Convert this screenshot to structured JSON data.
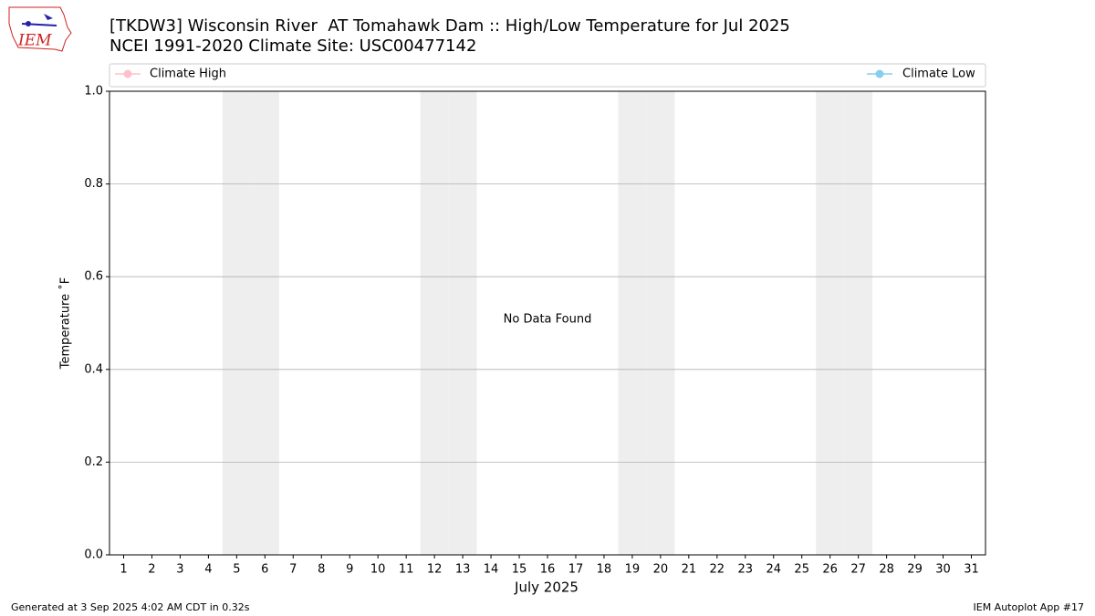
{
  "chart_data": {
    "type": "line",
    "title": "[TKDW3] Wisconsin River  AT Tomahawk Dam :: High/Low Temperature for Jul 2025",
    "subtitle": "NCEI 1991-2020 Climate Site: USC00477142",
    "x_label": "July 2025",
    "y_label": "Temperature ˚F",
    "annotation": "No Data Found",
    "categories": [
      "1",
      "2",
      "3",
      "4",
      "5",
      "6",
      "7",
      "8",
      "9",
      "10",
      "11",
      "12",
      "13",
      "14",
      "15",
      "16",
      "17",
      "18",
      "19",
      "20",
      "21",
      "22",
      "23",
      "24",
      "25",
      "26",
      "27",
      "28",
      "29",
      "30",
      "31"
    ],
    "series": [
      {
        "name": "Climate High",
        "color": "pink",
        "values": [
          null,
          null,
          null,
          null,
          null,
          null,
          null,
          null,
          null,
          null,
          null,
          null,
          null,
          null,
          null,
          null,
          null,
          null,
          null,
          null,
          null,
          null,
          null,
          null,
          null,
          null,
          null,
          null,
          null,
          null,
          null
        ]
      },
      {
        "name": "Climate Low",
        "color": "skyblue",
        "values": [
          null,
          null,
          null,
          null,
          null,
          null,
          null,
          null,
          null,
          null,
          null,
          null,
          null,
          null,
          null,
          null,
          null,
          null,
          null,
          null,
          null,
          null,
          null,
          null,
          null,
          null,
          null,
          null,
          null,
          null,
          null
        ]
      }
    ],
    "shaded_days": [
      5,
      6,
      12,
      13,
      19,
      20,
      26,
      27
    ],
    "shade_color": "#eeeeee",
    "ylim": [
      0,
      1
    ],
    "yticks": [
      {
        "value": 0,
        "label": "0.0"
      },
      0.2,
      0.4,
      0.6,
      0.8,
      {
        "value": 1,
        "label": "1.0"
      }
    ],
    "grid": true
  },
  "logo_text": "IEM",
  "footer_left": "Generated at 3 Sep 2025 4:02 AM CDT in 0.32s",
  "footer_right": "IEM Autoplot App #17"
}
